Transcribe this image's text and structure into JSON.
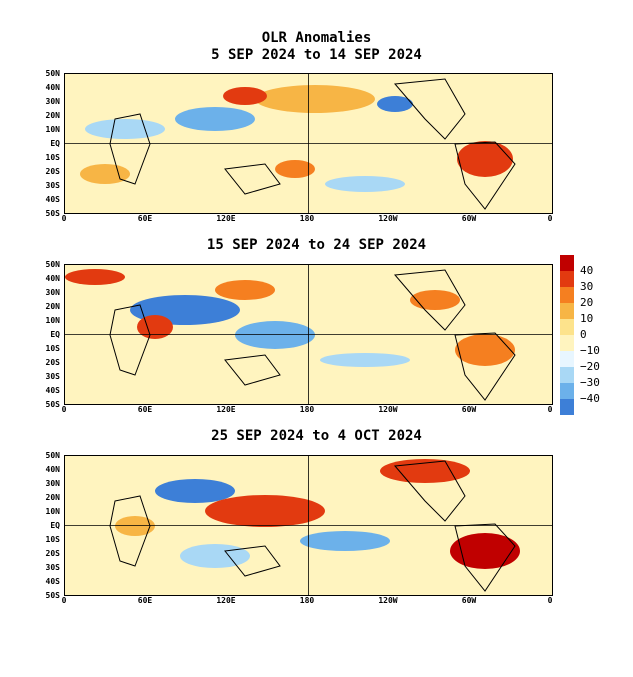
{
  "figure": {
    "title": "OLR Anomalies",
    "panels": [
      {
        "date_range": "5 SEP 2024 to 14 SEP 2024"
      },
      {
        "date_range": "15 SEP 2024 to 24 SEP 2024"
      },
      {
        "date_range": "25 SEP 2024 to 4 OCT 2024"
      }
    ],
    "lat_labels": [
      "50N",
      "40N",
      "30N",
      "20N",
      "10N",
      "EQ",
      "10S",
      "20S",
      "30S",
      "40S",
      "50S"
    ],
    "lon_labels": [
      "0",
      "60E",
      "120E",
      "180",
      "120W",
      "60W",
      "0"
    ]
  },
  "legend": {
    "labels": [
      "40",
      "30",
      "20",
      "10",
      "0",
      "−10",
      "−20",
      "−30",
      "−40"
    ],
    "colors": [
      "#c00000",
      "#e23a10",
      "#f57f20",
      "#f7b545",
      "#fde38c",
      "#fff4bf",
      "#e8f6ff",
      "#a9d8f5",
      "#6cb1ea",
      "#3d7fd7",
      "#1c4fb5"
    ]
  },
  "colors": {
    "neutral": "#fff4bf",
    "positive_light": "#fde38c",
    "positive_mid": "#f7b545",
    "positive_strong": "#e23a10",
    "negative_light": "#a9d8f5",
    "negative_mid": "#3d7fd7",
    "land_outline": "#000000"
  }
}
